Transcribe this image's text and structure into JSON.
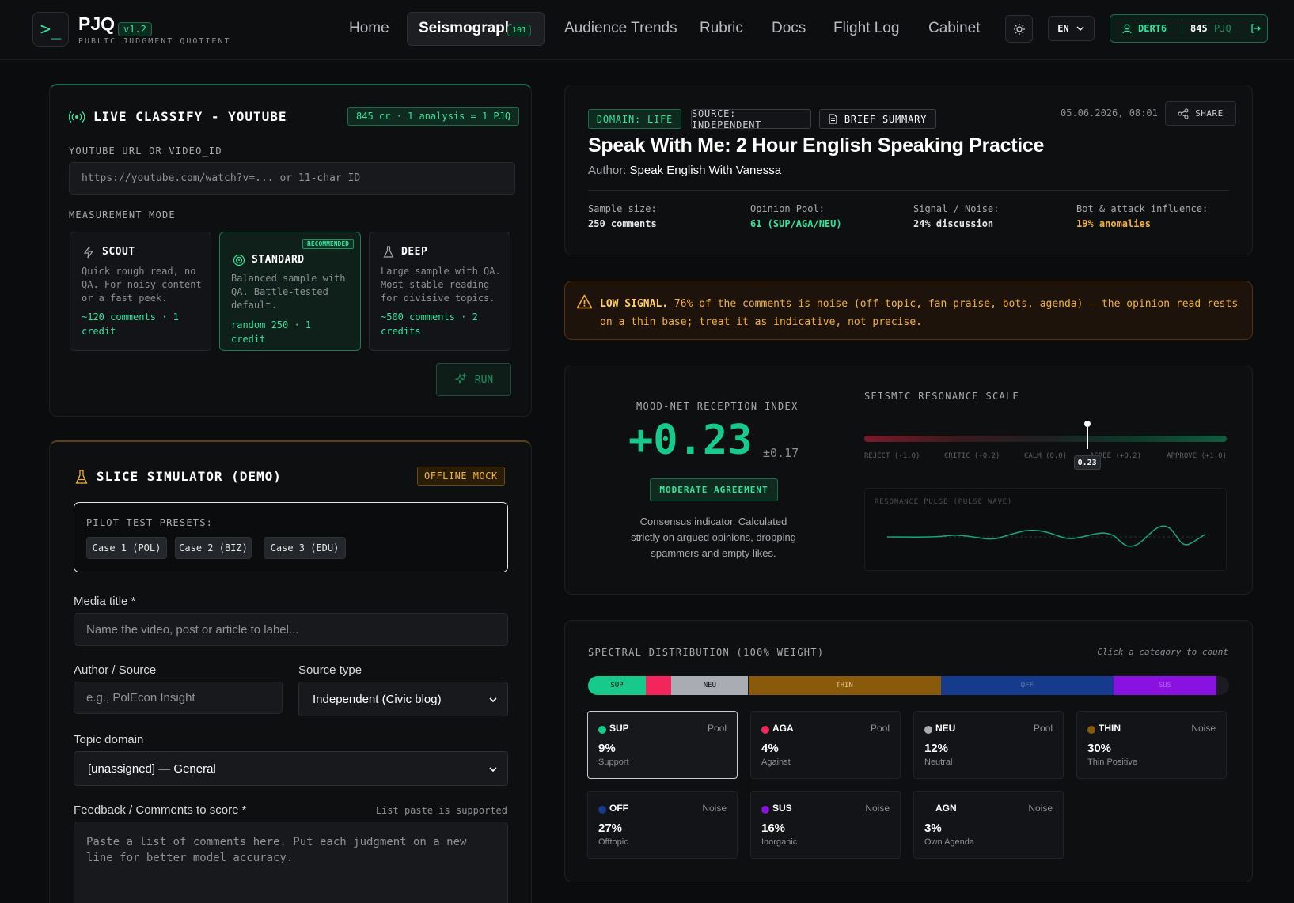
{
  "header": {
    "brand": "PJQ",
    "version": "v1.2",
    "subtitle": "PUBLIC JUDGMENT QUOTIENT",
    "nav": [
      "Home",
      "Seismograph",
      "Audience Trends",
      "Rubric",
      "Docs",
      "Flight Log",
      "Cabinet"
    ],
    "active_nav_badge": "101",
    "lang": "EN",
    "user": "DERT6",
    "balance": "845",
    "balance_unit": "PJQ"
  },
  "classify": {
    "title": "LIVE CLASSIFY - YOUTUBE",
    "cost": "845 cr · 1 analysis = 1 PJQ",
    "url_label": "YOUTUBE URL OR VIDEO_ID",
    "url_placeholder": "https://youtube.com/watch?v=... or 11-char ID",
    "mode_label": "MEASUREMENT MODE",
    "modes": [
      {
        "title": "SCOUT",
        "desc": "Quick rough read, no QA. For noisy content or a fast peek.",
        "foot": "~120 comments · 1 credit"
      },
      {
        "title": "STANDARD",
        "badge": "RECOMMENDED",
        "desc": "Balanced sample with QA. Battle-tested default.",
        "foot": "random 250 · 1 credit"
      },
      {
        "title": "DEEP",
        "desc": "Large sample with QA. Most stable reading for divisive topics.",
        "foot": "~500 comments · 2 credits"
      }
    ],
    "run": "RUN"
  },
  "simulator": {
    "title": "SLICE SIMULATOR (DEMO)",
    "badge": "OFFLINE MOCK",
    "presets_label": "PILOT TEST PRESETS:",
    "presets": [
      "Case 1 (POL)",
      "Case 2 (BIZ)",
      "Case 3 (EDU)"
    ],
    "media_label": "Media title *",
    "media_placeholder": "Name the video, post or article to label...",
    "author_label": "Author / Source",
    "author_placeholder": "e.g., PolEcon Insight",
    "source_type_label": "Source type",
    "source_type_value": "Independent (Civic blog)",
    "topic_label": "Topic domain",
    "topic_value": "[unassigned] — General",
    "feedback_label": "Feedback / Comments to score *",
    "feedback_hint": "List paste is supported",
    "feedback_placeholder": "Paste a list of comments here. Put each judgment on a new line for better model accuracy."
  },
  "report": {
    "tags": [
      "DOMAIN: LIFE",
      "SOURCE: INDEPENDENT",
      "BRIEF SUMMARY"
    ],
    "date": "05.06.2026, 08:01",
    "share": "SHARE",
    "title": "Speak With Me: 2 Hour English Speaking Practice",
    "author_prefix": "Author:",
    "author": "Speak English With Vanessa",
    "stats": [
      {
        "label": "Sample size:",
        "value": "250 comments",
        "color": "#ffffff"
      },
      {
        "label": "Opinion Pool:",
        "value": "61 (SUP/AGA/NEU)",
        "color": "#2ee59d"
      },
      {
        "label": "Signal / Noise:",
        "value": "24% discussion",
        "color": "#ffffff"
      },
      {
        "label": "Bot & attack influence:",
        "value": "19% anomalies",
        "color": "#f2b134"
      }
    ]
  },
  "warning": {
    "lead": "LOW SIGNAL.",
    "text": " 76% of the comments is noise (off-topic, fan praise, bots, agenda) — the opinion read rests on a thin base; treat it as indicative, not precise."
  },
  "index": {
    "title": "MOOD-NET RECEPTION INDEX",
    "value": "+0.23",
    "err": "±0.17",
    "badge": "MODERATE AGREEMENT",
    "desc": "Consensus indicator. Calculated strictly on argued opinions, dropping spammers and empty likes.",
    "scale_title": "SEISMIC RESONANCE SCALE",
    "scale_labels": [
      "REJECT (-1.0)",
      "CRITIC (-0.2)",
      "CALM (0.0)",
      "AGREE (+0.2)",
      "APPROVE (+1.0)"
    ],
    "marker": "0.23",
    "pulse_title": "RESONANCE PULSE (PULSE WAVE)"
  },
  "distribution": {
    "title": "SPECTRAL DISTRIBUTION (100% WEIGHT)",
    "hint": "Click a category to count",
    "cards": [
      {
        "code": "SUP",
        "kind": "Pool",
        "pct": "9%",
        "name": "Support",
        "color": "#17c98a"
      },
      {
        "code": "AGA",
        "kind": "Pool",
        "pct": "4%",
        "name": "Against",
        "color": "#f2255c"
      },
      {
        "code": "NEU",
        "kind": "Pool",
        "pct": "12%",
        "name": "Neutral",
        "color": "#a9adb3"
      },
      {
        "code": "THIN",
        "kind": "Noise",
        "pct": "30%",
        "name": "Thin Positive",
        "color": "#8a5a0b"
      },
      {
        "code": "OFF",
        "kind": "Noise",
        "pct": "27%",
        "name": "Offtopic",
        "color": "#163a8c"
      },
      {
        "code": "SUS",
        "kind": "Noise",
        "pct": "16%",
        "name": "Inorganic",
        "color": "#8a12e0"
      },
      {
        "code": "AGN",
        "kind": "Noise",
        "pct": "3%",
        "name": "Own Agenda",
        "color": ""
      }
    ]
  },
  "chart_data": {
    "type": "bar",
    "title": "SPECTRAL DISTRIBUTION (100% WEIGHT)",
    "categories": [
      "SUP",
      "AGA",
      "NEU",
      "THIN",
      "OFF",
      "SUS",
      "AGN"
    ],
    "values": [
      9,
      4,
      12,
      30,
      27,
      16,
      3
    ],
    "colors": [
      "#17c98a",
      "#f2255c",
      "#a9adb3",
      "#8a5a0b",
      "#163a8c",
      "#8a12e0",
      "#1a1c1f"
    ],
    "resonance_scale": {
      "min": -1.0,
      "max": 1.0,
      "value": 0.23
    }
  }
}
